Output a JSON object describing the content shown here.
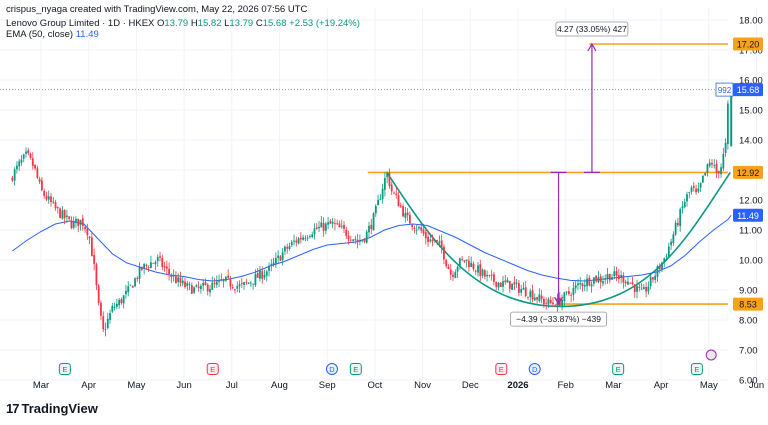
{
  "header": {
    "attribution": "crispus_nyaga created with TradingView.com, May 22, 2026 07:56 UTC",
    "symbol": "Lenovo Group Limited · 1D · HKEX",
    "ohlc": {
      "o_label": "O",
      "o": "13.79",
      "h_label": "H",
      "h": "15.82",
      "l_label": "L",
      "l": "13.79",
      "c_label": "C",
      "c": "15.68",
      "change": "+2.53 (+19.24%)"
    },
    "ema_label": "EMA (50, close)",
    "ema_value": "11.49"
  },
  "logo": {
    "text": "TradingView",
    "mark": "17"
  },
  "colors": {
    "up": "#089981",
    "down": "#f23645",
    "ema": "#2962ff",
    "level": "#f7a21b",
    "measure": "#9c27b0",
    "cup": "#089981",
    "grid": "#f0f3fa",
    "axis_text": "#131722"
  },
  "chart_data": {
    "type": "candlestick",
    "y_axis": {
      "range": [
        6.0,
        18.4
      ],
      "ticks": [
        "6.00",
        "7.00",
        "8.00",
        "9.00",
        "10.00",
        "11.00",
        "12.00",
        "13.00",
        "14.00",
        "15.00",
        "16.00",
        "17.00",
        "18.00"
      ]
    },
    "x_axis": {
      "ticks": [
        "Mar",
        "Apr",
        "May",
        "Jun",
        "Jul",
        "Aug",
        "Sep",
        "Oct",
        "Nov",
        "Dec",
        "2026",
        "Feb",
        "Mar",
        "Apr",
        "May",
        "Jun"
      ]
    },
    "price_labels": [
      {
        "value": 17.2,
        "text": "17.20",
        "kind": "level"
      },
      {
        "value": 15.68,
        "text": "15.68",
        "kind": "last",
        "tag": "992"
      },
      {
        "value": 12.92,
        "text": "12.92",
        "kind": "level"
      },
      {
        "value": 11.49,
        "text": "11.49",
        "kind": "ema"
      },
      {
        "value": 8.53,
        "text": "8.53",
        "kind": "level"
      }
    ],
    "levels": [
      {
        "value": 17.2,
        "from_month": 11.5
      },
      {
        "value": 12.92,
        "from_month": 6.85
      },
      {
        "value": 8.53,
        "from_month": 10.8
      }
    ],
    "measurements": [
      {
        "text": "4.27 (33.05%) 427",
        "month": 11.55,
        "from": 12.92,
        "to": 17.2
      },
      {
        "text": "−4.39 (−33.87%) −439",
        "month": 10.85,
        "from": 12.92,
        "to": 8.53
      }
    ],
    "cup": {
      "start_month": 7.25,
      "start": 12.92,
      "bottom_month": 10.9,
      "bottom": 8.45,
      "end_month": 14.45,
      "end": 12.92
    },
    "event_markers": [
      {
        "month": 0.5,
        "letter": "E",
        "kind": "earnings-green"
      },
      {
        "month": 3.6,
        "letter": "E",
        "kind": "earnings-red"
      },
      {
        "month": 6.1,
        "letter": "D",
        "kind": "dividend"
      },
      {
        "month": 6.6,
        "letter": "E",
        "kind": "earnings-green"
      },
      {
        "month": 9.65,
        "letter": "E",
        "kind": "earnings-red"
      },
      {
        "month": 10.35,
        "letter": "D",
        "kind": "dividend"
      },
      {
        "month": 12.1,
        "letter": "E",
        "kind": "earnings-green"
      },
      {
        "month": 13.75,
        "letter": "E",
        "kind": "earnings-green"
      }
    ],
    "series": [
      {
        "name": "Lenovo Group Limited",
        "kind": "price",
        "points": [
          [
            -0.6,
            12.7
          ],
          [
            -0.4,
            13.2
          ],
          [
            -0.25,
            13.5
          ],
          [
            -0.1,
            13.1
          ],
          [
            0.05,
            12.3
          ],
          [
            0.2,
            12.0
          ],
          [
            0.35,
            11.7
          ],
          [
            0.55,
            11.4
          ],
          [
            0.7,
            11.2
          ],
          [
            0.9,
            11.3
          ],
          [
            1.05,
            10.9
          ],
          [
            1.15,
            9.9
          ],
          [
            1.25,
            8.5
          ],
          [
            1.35,
            7.6
          ],
          [
            1.45,
            8.0
          ],
          [
            1.55,
            8.4
          ],
          [
            1.7,
            8.6
          ],
          [
            1.85,
            8.9
          ],
          [
            2.0,
            9.3
          ],
          [
            2.15,
            9.7
          ],
          [
            2.35,
            9.9
          ],
          [
            2.5,
            10.0
          ],
          [
            2.7,
            9.6
          ],
          [
            2.9,
            9.3
          ],
          [
            3.1,
            9.1
          ],
          [
            3.3,
            9.0
          ],
          [
            3.5,
            9.1
          ],
          [
            3.7,
            9.15
          ],
          [
            3.9,
            9.3
          ],
          [
            4.05,
            9.2
          ],
          [
            4.25,
            9.1
          ],
          [
            4.45,
            9.3
          ],
          [
            4.65,
            9.5
          ],
          [
            4.85,
            9.7
          ],
          [
            5.0,
            10.0
          ],
          [
            5.15,
            10.3
          ],
          [
            5.35,
            10.6
          ],
          [
            5.55,
            10.8
          ],
          [
            5.75,
            11.0
          ],
          [
            5.95,
            11.1
          ],
          [
            6.15,
            11.2
          ],
          [
            6.35,
            11.0
          ],
          [
            6.55,
            10.8
          ],
          [
            6.7,
            10.6
          ],
          [
            6.85,
            10.8
          ],
          [
            7.0,
            11.3
          ],
          [
            7.1,
            11.8
          ],
          [
            7.2,
            12.4
          ],
          [
            7.3,
            12.9
          ],
          [
            7.4,
            12.3
          ],
          [
            7.55,
            11.9
          ],
          [
            7.7,
            11.4
          ],
          [
            7.85,
            11.2
          ],
          [
            8.0,
            11.0
          ],
          [
            8.15,
            10.7
          ],
          [
            8.3,
            10.6
          ],
          [
            8.45,
            10.4
          ],
          [
            8.55,
            9.9
          ],
          [
            8.65,
            9.5
          ],
          [
            8.8,
            9.9
          ],
          [
            8.95,
            10.0
          ],
          [
            9.1,
            9.8
          ],
          [
            9.25,
            9.6
          ],
          [
            9.4,
            9.4
          ],
          [
            9.55,
            9.3
          ],
          [
            9.7,
            9.2
          ],
          [
            9.85,
            9.2
          ],
          [
            10.0,
            9.1
          ],
          [
            10.15,
            9.0
          ],
          [
            10.3,
            8.9
          ],
          [
            10.45,
            8.75
          ],
          [
            10.6,
            8.6
          ],
          [
            10.75,
            8.55
          ],
          [
            10.9,
            8.6
          ],
          [
            11.05,
            8.8
          ],
          [
            11.2,
            9.0
          ],
          [
            11.35,
            9.2
          ],
          [
            11.5,
            9.3
          ],
          [
            11.65,
            9.4
          ],
          [
            11.8,
            9.35
          ],
          [
            11.95,
            9.5
          ],
          [
            12.1,
            9.45
          ],
          [
            12.25,
            9.4
          ],
          [
            12.4,
            9.25
          ],
          [
            12.55,
            9.0
          ],
          [
            12.65,
            8.85
          ],
          [
            12.8,
            9.2
          ],
          [
            12.95,
            9.6
          ],
          [
            13.1,
            10.0
          ],
          [
            13.25,
            10.6
          ],
          [
            13.4,
            11.3
          ],
          [
            13.55,
            12.0
          ],
          [
            13.7,
            12.4
          ],
          [
            13.8,
            12.1
          ],
          [
            13.9,
            12.6
          ],
          [
            14.0,
            13.0
          ],
          [
            14.1,
            13.3
          ],
          [
            14.2,
            12.9
          ],
          [
            14.3,
            13.1
          ],
          [
            14.4,
            13.8
          ],
          [
            14.47,
            15.68
          ]
        ]
      },
      {
        "name": "EMA (50, close)",
        "kind": "ema",
        "points": [
          [
            -0.6,
            10.3
          ],
          [
            -0.3,
            10.65
          ],
          [
            0.0,
            10.95
          ],
          [
            0.3,
            11.2
          ],
          [
            0.6,
            11.3
          ],
          [
            0.9,
            11.2
          ],
          [
            1.2,
            10.7
          ],
          [
            1.5,
            10.2
          ],
          [
            1.8,
            9.9
          ],
          [
            2.1,
            9.75
          ],
          [
            2.4,
            9.6
          ],
          [
            2.7,
            9.5
          ],
          [
            3.0,
            9.45
          ],
          [
            3.3,
            9.35
          ],
          [
            3.6,
            9.3
          ],
          [
            3.9,
            9.35
          ],
          [
            4.2,
            9.45
          ],
          [
            4.5,
            9.6
          ],
          [
            4.8,
            9.8
          ],
          [
            5.1,
            9.95
          ],
          [
            5.4,
            10.15
          ],
          [
            5.7,
            10.35
          ],
          [
            6.0,
            10.5
          ],
          [
            6.3,
            10.55
          ],
          [
            6.6,
            10.6
          ],
          [
            6.9,
            10.75
          ],
          [
            7.2,
            11.0
          ],
          [
            7.5,
            11.15
          ],
          [
            7.8,
            11.2
          ],
          [
            8.1,
            11.15
          ],
          [
            8.4,
            10.95
          ],
          [
            8.7,
            10.75
          ],
          [
            9.0,
            10.5
          ],
          [
            9.3,
            10.25
          ],
          [
            9.6,
            10.05
          ],
          [
            9.9,
            9.85
          ],
          [
            10.2,
            9.65
          ],
          [
            10.5,
            9.5
          ],
          [
            10.8,
            9.4
          ],
          [
            11.1,
            9.32
          ],
          [
            11.4,
            9.3
          ],
          [
            11.7,
            9.35
          ],
          [
            12.0,
            9.4
          ],
          [
            12.3,
            9.45
          ],
          [
            12.6,
            9.5
          ],
          [
            12.9,
            9.6
          ],
          [
            13.2,
            9.8
          ],
          [
            13.5,
            10.15
          ],
          [
            13.8,
            10.6
          ],
          [
            14.1,
            11.0
          ],
          [
            14.4,
            11.35
          ],
          [
            14.47,
            11.49
          ]
        ]
      }
    ]
  }
}
